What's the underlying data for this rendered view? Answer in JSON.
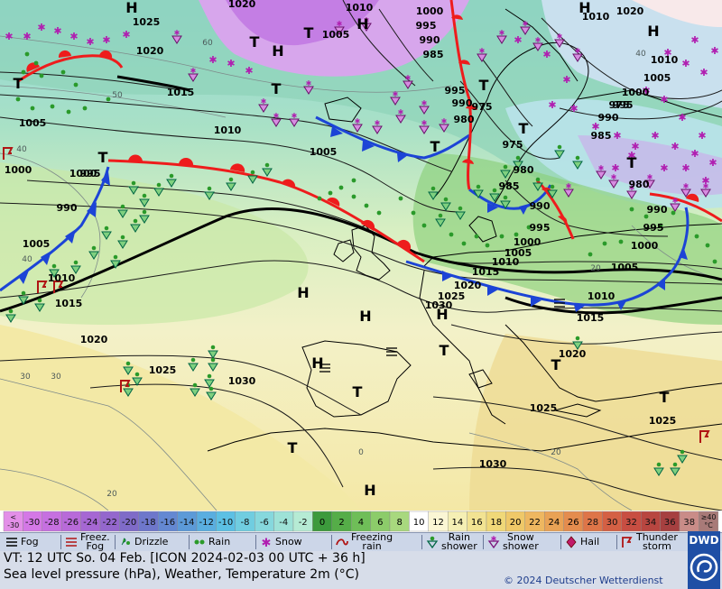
{
  "header_valid_time": "VT: 12 UTC So.  04 Feb. [ICON 2024-02-03  00 UTC + 36 h]",
  "description": "Sea level pressure (hPa), Weather, Temperature 2m (°C)",
  "copyright": "© 2024 Deutscher Wetterdienst",
  "logo_text": "DWD",
  "temperature_scale": {
    "labels": [
      "<\n-30",
      "-30",
      "-28",
      "-26",
      "-24",
      "-22",
      "-20",
      "-18",
      "-16",
      "-14",
      "-12",
      "-10",
      "-8",
      "-6",
      "-4",
      "-2",
      "0",
      "2",
      "4",
      "6",
      "8",
      "10",
      "12",
      "14",
      "16",
      "18",
      "20",
      "22",
      "24",
      "26",
      "28",
      "30",
      "32",
      "34",
      "36",
      "38",
      "≥40\n°C"
    ],
    "colors": [
      "#e38fe8",
      "#d478e6",
      "#c670e0",
      "#b86ad9",
      "#a667d3",
      "#9467cd",
      "#7f6bc8",
      "#6e77cb",
      "#6488d2",
      "#5c9ad8",
      "#5aaee0",
      "#5cc0e4",
      "#70cde0",
      "#86d8dd",
      "#9ee2d7",
      "#b6ebd4",
      "#3c9a3c",
      "#55ad48",
      "#6fbe58",
      "#8ccc6a",
      "#a8d87e",
      "#ffffff",
      "#fbf6d4",
      "#f5efb4",
      "#f2e392",
      "#f0d878",
      "#efc868",
      "#eeb760",
      "#e9a255",
      "#e48c4e",
      "#de7548",
      "#d46044",
      "#c84e42",
      "#b84640",
      "#a64040",
      "#c98c88",
      "#a87a78"
    ]
  },
  "legend": [
    {
      "icon": "fog-icon",
      "label": "Fog"
    },
    {
      "icon": "freezing-fog-icon",
      "label": "Freez.\nFog"
    },
    {
      "icon": "drizzle-icon",
      "label": "Drizzle"
    },
    {
      "icon": "rain-icon",
      "label": "Rain"
    },
    {
      "icon": "snow-icon",
      "label": "Snow"
    },
    {
      "icon": "freezing-rain-icon",
      "label": "Freezing\nrain"
    },
    {
      "icon": "rain-shower-icon",
      "label": "Rain\nshower"
    },
    {
      "icon": "snow-shower-icon",
      "label": "Snow\nshower"
    },
    {
      "icon": "hail-icon",
      "label": "Hail"
    },
    {
      "icon": "thunderstorm-icon",
      "label": "Thunder\nstorm"
    }
  ],
  "pressure_centers": [
    {
      "kind": "H",
      "label": "H"
    },
    {
      "kind": "H",
      "label": "H"
    },
    {
      "kind": "H",
      "label": "H"
    },
    {
      "kind": "H",
      "label": "H"
    },
    {
      "kind": "H",
      "label": "H"
    },
    {
      "kind": "H",
      "label": "H"
    },
    {
      "kind": "H",
      "label": "H"
    },
    {
      "kind": "H",
      "label": "H"
    },
    {
      "kind": "H",
      "label": "H"
    },
    {
      "kind": "H",
      "label": "H"
    },
    {
      "kind": "T",
      "label": "T"
    },
    {
      "kind": "T",
      "label": "T"
    },
    {
      "kind": "T",
      "label": "T"
    },
    {
      "kind": "T",
      "label": "T"
    },
    {
      "kind": "T",
      "label": "T"
    },
    {
      "kind": "T",
      "label": "T"
    },
    {
      "kind": "T",
      "label": "T"
    },
    {
      "kind": "T",
      "label": "T"
    },
    {
      "kind": "T",
      "label": "T"
    },
    {
      "kind": "T",
      "label": "T"
    },
    {
      "kind": "T",
      "label": "T"
    },
    {
      "kind": "T",
      "label": "T"
    },
    {
      "kind": "T",
      "label": "T"
    },
    {
      "kind": "T",
      "label": "T"
    }
  ],
  "isobar_labels": [
    "1025",
    "1020",
    "1015",
    "1020",
    "1010",
    "1000",
    "995",
    "990",
    "985",
    "1005",
    "995",
    "990",
    "980",
    "975",
    "975",
    "980",
    "985",
    "990",
    "995",
    "1000",
    "1005",
    "1010",
    "990",
    "995",
    "1000",
    "1005",
    "1010",
    "985",
    "990",
    "995",
    "1000",
    "1005",
    "1010",
    "1015",
    "1020",
    "1025",
    "1030",
    "1025",
    "1020",
    "1015",
    "1010",
    "1005",
    "1010",
    "1015",
    "1020",
    "1030",
    "1025",
    "1030",
    "1025",
    "1020",
    "1010",
    "1005",
    "1000",
    "995",
    "990",
    "980",
    "975",
    "1005",
    "1000"
  ],
  "isotherm_labels": [
    "60",
    "50",
    "40",
    "30",
    "20",
    "40",
    "0",
    "20",
    "30",
    "20",
    "40"
  ]
}
